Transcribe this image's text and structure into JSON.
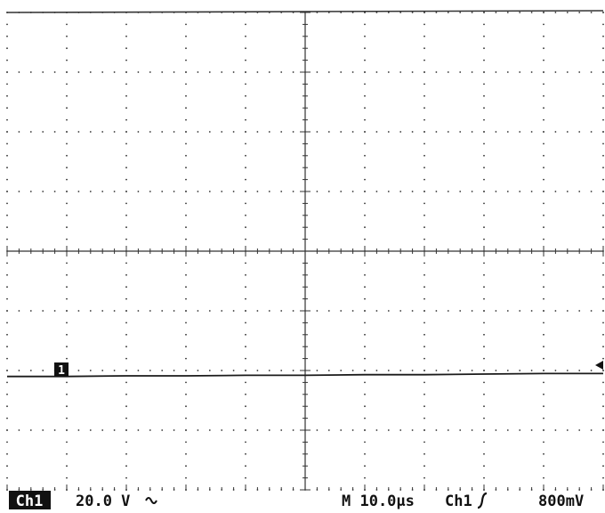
{
  "colors": {
    "background": "#ffffff",
    "grid": "#333333",
    "trace": "#1a1a1a",
    "text": "#111111"
  },
  "status_bar": {
    "channel_badge": "Ch1",
    "volts_per_div": "20.0 V",
    "coupling_icon": "ac-coupling-icon",
    "timebase": "M 10.0µs",
    "trigger_source": "Ch1",
    "trigger_slope_icon": "rising-edge-icon",
    "trigger_level": "800mV"
  },
  "markers": {
    "ground_marker": "1",
    "trigger_level_icon": "left-arrow-icon"
  },
  "chart_data": {
    "type": "line",
    "grid": true,
    "x_divisions": 10,
    "y_divisions": 8,
    "series": [
      {
        "x": [
          0,
          1,
          2,
          3,
          4,
          5,
          6,
          7,
          8,
          9,
          10
        ],
        "values": [
          -2.1,
          -2.1,
          -2.09,
          -2.09,
          -2.08,
          -2.08,
          -2.07,
          -2.07,
          -2.06,
          -2.05,
          -2.05
        ]
      }
    ]
  }
}
